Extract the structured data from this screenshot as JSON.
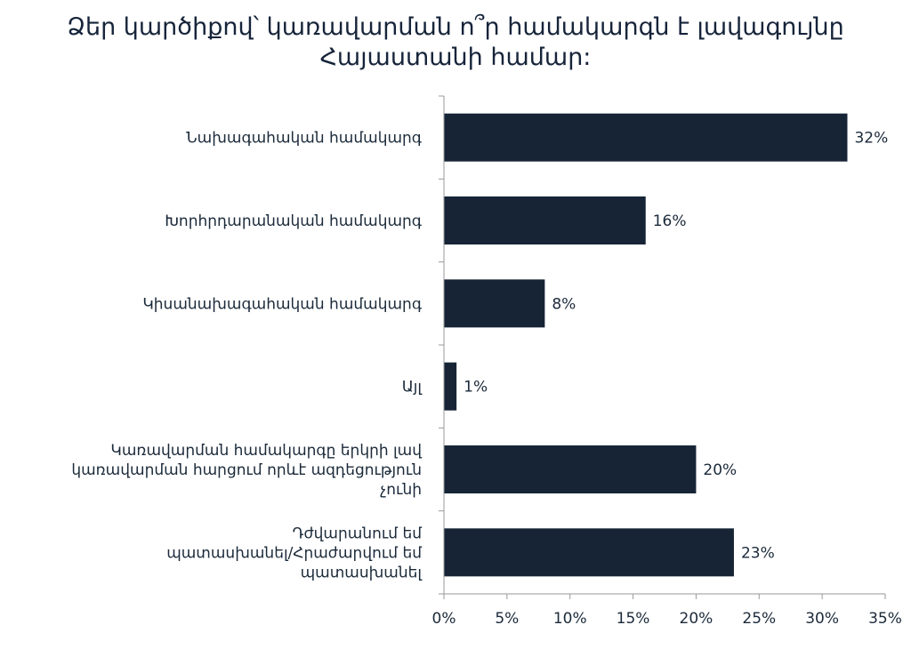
{
  "chart_data": {
    "type": "bar",
    "orientation": "horizontal",
    "title": "Ձեր կարծիքով՝ կառավարման ո՞ր համակարգն է լավագույնը\nՀայաստանի համար:",
    "categories": [
      "Նախագահական համակարգ",
      "Խորհրդարանական համակարգ",
      "Կիսանախագահական համակարգ",
      "Այլ",
      "Կառավարման համակարգը երկրի լավ կառավարման հարցում որևէ ազդեցություն չունի",
      "Դժվարանում եմ պատասխանել/Հրաժարվում եմ պատասխանել"
    ],
    "category_lines": [
      [
        "Նախագահական համակարգ"
      ],
      [
        "Խորհրդարանական համակարգ"
      ],
      [
        "Կիսանախագահական համակարգ"
      ],
      [
        "Այլ"
      ],
      [
        "Կառավարման համակարգը երկրի լավ",
        "կառավարման հարցում որևէ ազդեցություն",
        "չունի"
      ],
      [
        "Դժվարանում եմ",
        "պատասխանել/Հրաժարվում եմ",
        "պատասխանել"
      ]
    ],
    "values": [
      32,
      16,
      8,
      1,
      20,
      23
    ],
    "value_labels": [
      "32%",
      "16%",
      "8%",
      "1%",
      "20%",
      "23%"
    ],
    "xlim": [
      0,
      35
    ],
    "x_ticks": [
      0,
      5,
      10,
      15,
      20,
      25,
      30,
      35
    ],
    "x_tick_labels": [
      "0%",
      "5%",
      "10%",
      "15%",
      "20%",
      "25%",
      "30%",
      "35%"
    ],
    "grid": false,
    "legend": "none",
    "bar_color": "#162436"
  }
}
